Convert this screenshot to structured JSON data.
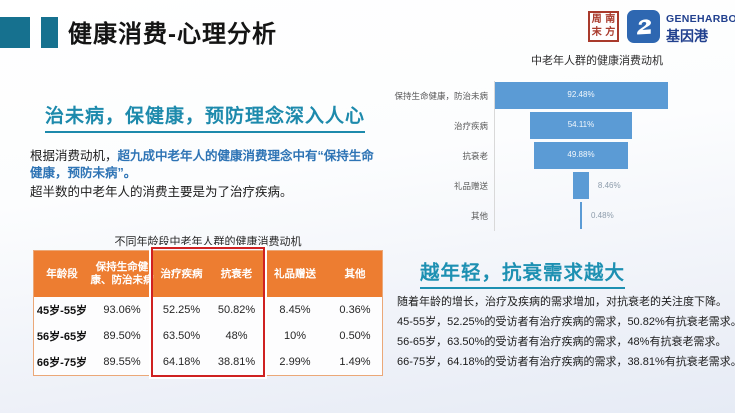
{
  "header": {
    "title": "健康消费-心理分析",
    "seal": {
      "chars": [
        "周",
        "南",
        "末",
        "方"
      ]
    },
    "logo": {
      "brand": "GENEHARBOR",
      "brand_cn": "基因港"
    }
  },
  "left_section": {
    "headline": "治未病，保健康，预防理念深入人心",
    "para_prefix": "根据消费动机，",
    "para_highlight": "超九成中老年人的健康消费理念中有“保持生命健康，预防未病”。",
    "para_line2": "超半数的中老年人的消费主要是为了治疗疾病。"
  },
  "right_section": {
    "headline": "越年轻，抗衰需求越大",
    "lines": [
      "随着年龄的增长，治疗及疾病的需求增加，对抗衰老的关注度下降。",
      "45-55岁，52.25%的受访者有治疗疾病的需求，50.82%有抗衰老需求。",
      "56-65岁，63.50%的受访者有治疗疾病的需求，48%有抗衰老需求。",
      "66-75岁，64.18%的受访者有治疗疾病的需求，38.81%有抗衰老需求。"
    ]
  },
  "chart_data": [
    {
      "type": "bar",
      "variant": "centered-funnel",
      "title": "中老年人群的健康消费动机",
      "categories": [
        "保持生命健康，防治未病",
        "治疗疾病",
        "抗衰老",
        "礼品赠送",
        "其他"
      ],
      "values": [
        92.48,
        54.11,
        49.88,
        8.46,
        0.48
      ],
      "labels": [
        "92.48%",
        "54.11%",
        "49.88%",
        "8.46%",
        "0.48%"
      ],
      "xlim": [
        0,
        100
      ],
      "bar_color": "#5b9bd5",
      "legend": "none",
      "grid": "off"
    },
    {
      "type": "table",
      "title": "不同年龄段中老年人群的健康消费动机",
      "columns": [
        "年龄段",
        "保持生命健康、防治未病",
        "治疗疾病",
        "抗衰老",
        "礼品赠送",
        "其他"
      ],
      "rows": [
        [
          "45岁-55岁",
          "93.06%",
          "52.25%",
          "50.82%",
          "8.45%",
          "0.36%"
        ],
        [
          "56岁-65岁",
          "89.50%",
          "63.50%",
          "48%",
          "10%",
          "0.50%"
        ],
        [
          "66岁-75岁",
          "89.55%",
          "64.18%",
          "38.81%",
          "2.99%",
          "1.49%"
        ]
      ],
      "highlight_columns": [
        "治疗疾病",
        "抗衰老"
      ]
    }
  ],
  "colors": {
    "accent_teal": "#16718f",
    "headline_teal": "#1d8aac",
    "highlight_blue": "#2e74b5",
    "table_header_orange": "#ed7d31",
    "red_box": "#cf2121",
    "bar_blue": "#5b9bd5",
    "seal_red": "#a93a2c",
    "logo_navy": "#21408e"
  }
}
